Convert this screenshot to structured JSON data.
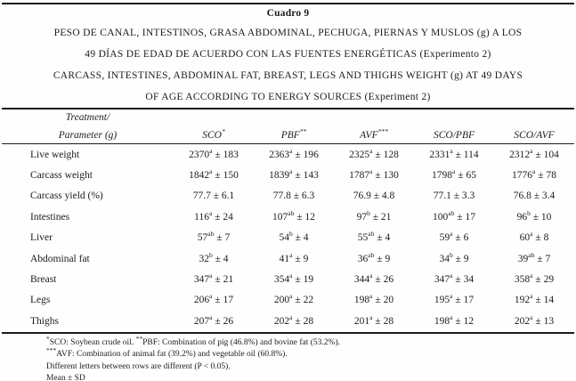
{
  "page": {
    "table_label": "Cuadro 9",
    "title_lines": [
      "PESO DE CANAL, INTESTINOS, GRASA ABDOMINAL,  PECHUGA, PIERNAS Y MUSLOS (g) A LOS",
      "49 DÍAS DE EDAD DE ACUERDO CON LAS FUENTES ENERGÉTICAS (Experimento 2)",
      "CARCASS, INTESTINES, ABDOMINAL FAT, BREAST, LEGS AND THIGHS WEIGHT (g) AT 49 DAYS",
      "OF AGE ACCORDING TO ENERGY SOURCES (Experiment 2)"
    ]
  },
  "table": {
    "header": {
      "col1_line1": "Treatment/",
      "col1_line2": "Parameter (g)",
      "columns": [
        {
          "label": "SCO",
          "sup": "*"
        },
        {
          "label": "PBF",
          "sup": "**"
        },
        {
          "label": "AVF",
          "sup": "***"
        },
        {
          "label": "SCO/PBF",
          "sup": ""
        },
        {
          "label": "SCO/AVF",
          "sup": ""
        }
      ]
    },
    "rows": [
      {
        "param": "Live weight",
        "cells": [
          {
            "v": "2370",
            "s": "a",
            "sd": "183"
          },
          {
            "v": "2363",
            "s": "a",
            "sd": "196"
          },
          {
            "v": "2325",
            "s": "a",
            "sd": "128"
          },
          {
            "v": "2331",
            "s": "a",
            "sd": "114"
          },
          {
            "v": "2312",
            "s": "a",
            "sd": "104"
          }
        ]
      },
      {
        "param": "Carcass weight",
        "cells": [
          {
            "v": "1842",
            "s": "a",
            "sd": "150"
          },
          {
            "v": "1839",
            "s": "a",
            "sd": "143"
          },
          {
            "v": "1787",
            "s": "a",
            "sd": "130"
          },
          {
            "v": "1798",
            "s": "a",
            "sd": "65"
          },
          {
            "v": "1776",
            "s": "a",
            "sd": "78"
          }
        ]
      },
      {
        "param": "Carcass yield (%)",
        "cells": [
          {
            "v": "77.7",
            "s": "",
            "sd": "6.1"
          },
          {
            "v": "77.8",
            "s": "",
            "sd": "6.3"
          },
          {
            "v": "76.9",
            "s": "",
            "sd": "4.8"
          },
          {
            "v": "77.1",
            "s": "",
            "sd": "3.3"
          },
          {
            "v": "76.8",
            "s": "",
            "sd": "3.4"
          }
        ]
      },
      {
        "param": "Intestines",
        "cells": [
          {
            "v": "116",
            "s": "a",
            "sd": "24"
          },
          {
            "v": "107",
            "s": "ab",
            "sd": "12"
          },
          {
            "v": "97",
            "s": "b",
            "sd": "21"
          },
          {
            "v": "100",
            "s": "ab",
            "sd": "17"
          },
          {
            "v": "96",
            "s": "b",
            "sd": "10"
          }
        ]
      },
      {
        "param": "Liver",
        "cells": [
          {
            "v": "57",
            "s": "ab",
            "sd": "7"
          },
          {
            "v": "54",
            "s": "b",
            "sd": "4"
          },
          {
            "v": "55",
            "s": "ab",
            "sd": "4"
          },
          {
            "v": "59",
            "s": "a",
            "sd": "6"
          },
          {
            "v": "60",
            "s": "a",
            "sd": "8"
          }
        ]
      },
      {
        "param": "Abdominal fat",
        "cells": [
          {
            "v": "32",
            "s": "b",
            "sd": "4"
          },
          {
            "v": "41",
            "s": "a",
            "sd": "9"
          },
          {
            "v": "36",
            "s": "ab",
            "sd": "9"
          },
          {
            "v": "34",
            "s": "b",
            "sd": "9"
          },
          {
            "v": "39",
            "s": "ab",
            "sd": "7"
          }
        ]
      },
      {
        "param": "Breast",
        "cells": [
          {
            "v": "347",
            "s": "a",
            "sd": "21"
          },
          {
            "v": "354",
            "s": "a",
            "sd": "19"
          },
          {
            "v": "344",
            "s": "a",
            "sd": "26"
          },
          {
            "v": "347",
            "s": "a",
            "sd": "34"
          },
          {
            "v": "358",
            "s": "a",
            "sd": "29"
          }
        ]
      },
      {
        "param": "Legs",
        "cells": [
          {
            "v": "206",
            "s": "a",
            "sd": "17"
          },
          {
            "v": "200",
            "s": "a",
            "sd": "22"
          },
          {
            "v": "198",
            "s": "a",
            "sd": "20"
          },
          {
            "v": "195",
            "s": "a",
            "sd": "17"
          },
          {
            "v": "192",
            "s": "a",
            "sd": "14"
          }
        ]
      },
      {
        "param": "Thighs",
        "cells": [
          {
            "v": "207",
            "s": "a",
            "sd": "26"
          },
          {
            "v": "202",
            "s": "a",
            "sd": "28"
          },
          {
            "v": "201",
            "s": "a",
            "sd": "28"
          },
          {
            "v": "198",
            "s": "a",
            "sd": "12"
          },
          {
            "v": "202",
            "s": "a",
            "sd": "13"
          }
        ]
      }
    ]
  },
  "footnotes": [
    [
      {
        "sup": "*"
      },
      {
        "t": "SCO: Soybean crude oil. "
      },
      {
        "sup": "**"
      },
      {
        "t": "PBF: Combination of pig (46.8%) and bovine fat (53.2%)."
      }
    ],
    [
      {
        "sup": "***"
      },
      {
        "t": "AVF: Combination of animal fat (39.2%) and vegetable oil (60.8%)."
      }
    ],
    [
      {
        "t": "Different letters between rows are different (P < 0.05)."
      }
    ],
    [
      {
        "t": "Mean ± SD"
      }
    ]
  ]
}
